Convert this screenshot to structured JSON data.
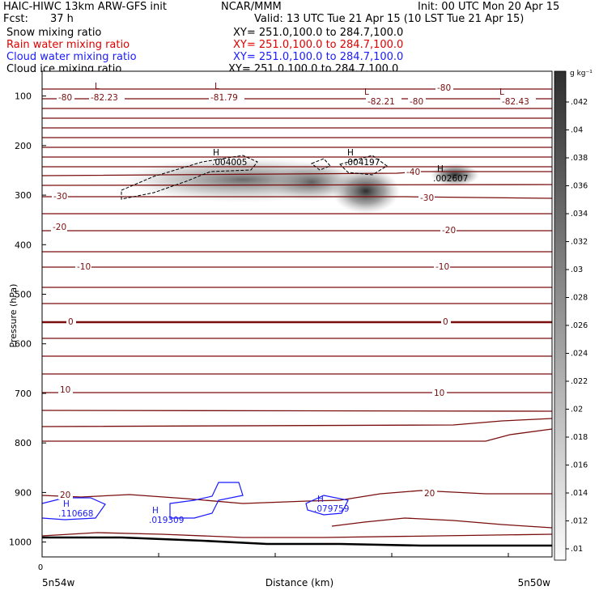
{
  "header": {
    "model": "HAIC-HIWC 13km ARW-GFS init",
    "org": "NCAR/MMM",
    "init": "Init: 00 UTC Mon 20 Apr 15",
    "fcst_label": "Fcst:",
    "fcst_value": "37 h",
    "valid": "Valid: 13 UTC Tue 21 Apr 15 (10 LST Tue 21 Apr 15)"
  },
  "fields": [
    {
      "name": "Snow mixing ratio",
      "xy": "XY= 251.0,100.0 to 284.7,100.0",
      "color": "#000000"
    },
    {
      "name": "Rain water mixing ratio",
      "xy": "XY= 251.0,100.0 to 284.7,100.0",
      "color": "#e00000"
    },
    {
      "name": "Cloud water mixing ratio",
      "xy": "XY= 251.0,100.0 to 284.7,100.0",
      "color": "#1a1aff"
    },
    {
      "name": "Cloud ice mixing ratio",
      "xy": "XY= 251.0,100.0 to 284.7,100.0",
      "color": "#000000"
    }
  ],
  "colors": {
    "temperature": "#7a0d0d",
    "cloud_water": "#1a1aff",
    "snow": "#000000",
    "terrain": "#000000"
  },
  "chart_data": {
    "type": "heatmap",
    "ylabel": "Pressure (hPa)",
    "xlabel": "Distance (km)",
    "ylim": [
      1030,
      50
    ],
    "y_ticks": [
      100,
      200,
      300,
      400,
      500,
      600,
      700,
      800,
      900,
      1000
    ],
    "x_start_tick": "0",
    "x_start_label": "5n54w",
    "x_end_label": "5n50w",
    "colorbar": {
      "unit": "g kg⁻¹",
      "ticks": [
        ".042",
        ".04",
        ".038",
        ".036",
        ".034",
        ".032",
        ".03",
        ".028",
        ".026",
        ".024",
        ".022",
        ".02",
        ".018",
        ".016",
        ".014",
        ".012",
        ".01"
      ]
    },
    "temperature_labels": [
      "-80",
      "-40",
      "-30",
      "-30",
      "-20",
      "-20",
      "-10",
      "-10",
      "0",
      "0",
      "10",
      "10",
      "20",
      "20"
    ],
    "low_labels": [
      {
        "mark": "L",
        "value": "-82.23"
      },
      {
        "mark": "L",
        "value": "-81.79"
      },
      {
        "mark": "L",
        "value": "-82.21"
      },
      {
        "mark": "L",
        "value": "-82.43"
      }
    ],
    "extra_temp_labels": [
      "-80",
      "-80"
    ],
    "snow_maxima": [
      {
        "mark": "H",
        "value": ".004005"
      },
      {
        "mark": "H",
        "value": ".004197"
      },
      {
        "mark": "H",
        "value": ".002607"
      }
    ],
    "cloud_water_maxima": [
      {
        "mark": "H",
        "value": ".110668"
      },
      {
        "mark": "H",
        "value": ".019309"
      },
      {
        "mark": "H",
        "value": ".079759"
      }
    ]
  }
}
